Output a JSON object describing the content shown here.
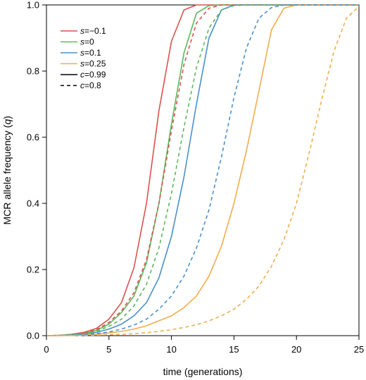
{
  "chart_data": {
    "type": "line",
    "title": "",
    "xlabel": "time (generations)",
    "ylabel_parts": [
      "MCR allele frequency (",
      "q",
      ")"
    ],
    "xlim": [
      0,
      25
    ],
    "ylim": [
      0,
      1
    ],
    "xticks": [
      0,
      5,
      10,
      15,
      20,
      25
    ],
    "yticks": [
      0.0,
      0.2,
      0.4,
      0.6,
      0.8,
      1.0
    ],
    "ytick_labels": [
      "0.0",
      "0.2",
      "0.4",
      "0.6",
      "0.8",
      "1.0"
    ],
    "grid": false,
    "legend_position": "top-left",
    "legend": [
      {
        "var": "s",
        "text": "=−0.1",
        "color": "#d9534f",
        "style": "solid"
      },
      {
        "var": "s",
        "text": "=0",
        "color": "#5cb85c",
        "style": "solid"
      },
      {
        "var": "s",
        "text": "=0.1",
        "color": "#4a90c8",
        "style": "solid"
      },
      {
        "var": "s",
        "text": "=0.25",
        "color": "#f0ad4e",
        "style": "solid"
      },
      {
        "var": "c",
        "text": "=0.99",
        "color": "#000000",
        "style": "solid"
      },
      {
        "var": "c",
        "text": "=0.8",
        "color": "#000000",
        "style": "dashed"
      }
    ],
    "x": [
      0,
      1,
      2,
      3,
      4,
      5,
      6,
      7,
      8,
      9,
      10,
      11,
      12,
      13,
      14,
      15,
      16,
      17,
      18,
      19,
      20,
      21,
      22,
      23,
      24,
      25
    ],
    "series": [
      {
        "s": -0.1,
        "c": 0.99,
        "color": "#d9534f",
        "style": "solid",
        "values": [
          0,
          0.001,
          0.004,
          0.01,
          0.022,
          0.05,
          0.1,
          0.205,
          0.4,
          0.68,
          0.89,
          0.985,
          1.0,
          1.0,
          1.0,
          1.0,
          1.0,
          1.0,
          1.0,
          1.0,
          1.0,
          1.0,
          1.0,
          1.0,
          1.0,
          1.0
        ]
      },
      {
        "s": 0,
        "c": 0.99,
        "color": "#5cb85c",
        "style": "solid",
        "values": [
          0,
          0.001,
          0.003,
          0.007,
          0.016,
          0.035,
          0.07,
          0.12,
          0.22,
          0.4,
          0.64,
          0.855,
          0.975,
          0.998,
          1.0,
          1.0,
          1.0,
          1.0,
          1.0,
          1.0,
          1.0,
          1.0,
          1.0,
          1.0,
          1.0,
          1.0
        ]
      },
      {
        "s": 0.1,
        "c": 0.99,
        "color": "#4a90c8",
        "style": "solid",
        "values": [
          0,
          0.0005,
          0.002,
          0.005,
          0.01,
          0.02,
          0.035,
          0.06,
          0.1,
          0.175,
          0.3,
          0.48,
          0.7,
          0.9,
          0.985,
          1.0,
          1.0,
          1.0,
          1.0,
          1.0,
          1.0,
          1.0,
          1.0,
          1.0,
          1.0,
          1.0
        ]
      },
      {
        "s": 0.25,
        "c": 0.99,
        "color": "#f0ad4e",
        "style": "solid",
        "values": [
          0,
          0.0002,
          0.0008,
          0.002,
          0.004,
          0.008,
          0.013,
          0.02,
          0.03,
          0.045,
          0.06,
          0.085,
          0.12,
          0.18,
          0.27,
          0.4,
          0.56,
          0.74,
          0.925,
          0.99,
          1.0,
          1.0,
          1.0,
          1.0,
          1.0,
          1.0
        ]
      },
      {
        "s": -0.1,
        "c": 0.8,
        "color": "#d9534f",
        "style": "dashed",
        "values": [
          0,
          0.001,
          0.003,
          0.008,
          0.018,
          0.04,
          0.075,
          0.13,
          0.23,
          0.4,
          0.62,
          0.82,
          0.945,
          0.99,
          1.0,
          1.0,
          1.0,
          1.0,
          1.0,
          1.0,
          1.0,
          1.0,
          1.0,
          1.0,
          1.0,
          1.0
        ]
      },
      {
        "s": 0,
        "c": 0.8,
        "color": "#5cb85c",
        "style": "dashed",
        "values": [
          0,
          0.0008,
          0.0025,
          0.006,
          0.013,
          0.028,
          0.05,
          0.09,
          0.155,
          0.265,
          0.43,
          0.63,
          0.81,
          0.93,
          0.985,
          0.998,
          1.0,
          1.0,
          1.0,
          1.0,
          1.0,
          1.0,
          1.0,
          1.0,
          1.0,
          1.0
        ]
      },
      {
        "s": 0.1,
        "c": 0.8,
        "color": "#4a90c8",
        "style": "dashed",
        "values": [
          0,
          0.0005,
          0.0015,
          0.003,
          0.006,
          0.011,
          0.02,
          0.032,
          0.05,
          0.08,
          0.12,
          0.18,
          0.265,
          0.38,
          0.54,
          0.72,
          0.87,
          0.96,
          0.992,
          1.0,
          1.0,
          1.0,
          1.0,
          1.0,
          1.0,
          1.0
        ]
      },
      {
        "s": 0.25,
        "c": 0.8,
        "color": "#f0ad4e",
        "style": "dashed",
        "values": [
          0,
          0.0001,
          0.0003,
          0.0008,
          0.0015,
          0.0025,
          0.004,
          0.006,
          0.009,
          0.013,
          0.018,
          0.025,
          0.033,
          0.045,
          0.06,
          0.08,
          0.11,
          0.15,
          0.21,
          0.29,
          0.4,
          0.55,
          0.71,
          0.86,
          0.96,
          0.995
        ]
      }
    ]
  }
}
